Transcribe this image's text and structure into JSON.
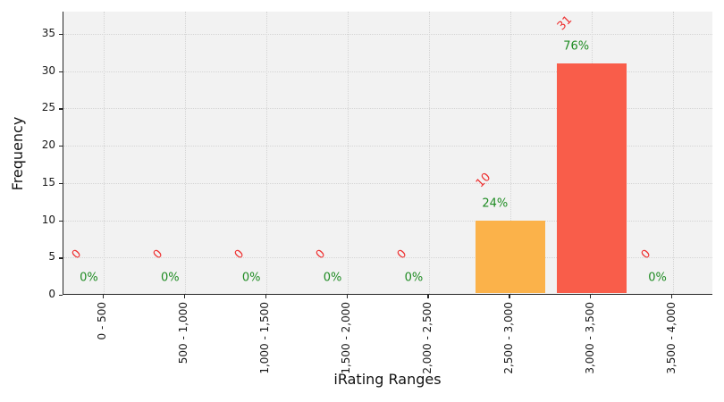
{
  "chart_data": {
    "type": "bar",
    "title": "",
    "xlabel": "iRating Ranges",
    "ylabel": "Frequency",
    "categories": [
      "0 - 500",
      "500 - 1,000",
      "1,000 - 1,500",
      "1,500 - 2,000",
      "2,000 - 2,500",
      "2,500 - 3,000",
      "3,000 - 3,500",
      "3,500 - 4,000"
    ],
    "values": [
      0,
      0,
      0,
      0,
      0,
      10,
      31,
      0
    ],
    "count_labels": [
      "0",
      "0",
      "0",
      "0",
      "0",
      "10",
      "31",
      "0"
    ],
    "percent_labels": [
      "0%",
      "0%",
      "0%",
      "0%",
      "0%",
      "24%",
      "76%",
      "0%"
    ],
    "yticks": [
      0,
      5,
      10,
      15,
      20,
      25,
      30,
      35
    ],
    "ylim": [
      0,
      38
    ],
    "grid": "dotted, horizontal and vertical",
    "legend": "none",
    "bar_colors": [
      "#fbb24a",
      "#fbb24a",
      "#fbb24a",
      "#fbb24a",
      "#fbb24a",
      "#fbb24a",
      "#f95d4a",
      "#fbb24a"
    ]
  },
  "colors": {
    "plot_background": "#f2f2f2",
    "gridline": "#d4d4d4",
    "spine": "#262626",
    "count_label": "#ee2e2e",
    "percent_label": "#1e8b22",
    "bar_orange": "#fbb24a",
    "bar_red": "#f95d4a"
  }
}
